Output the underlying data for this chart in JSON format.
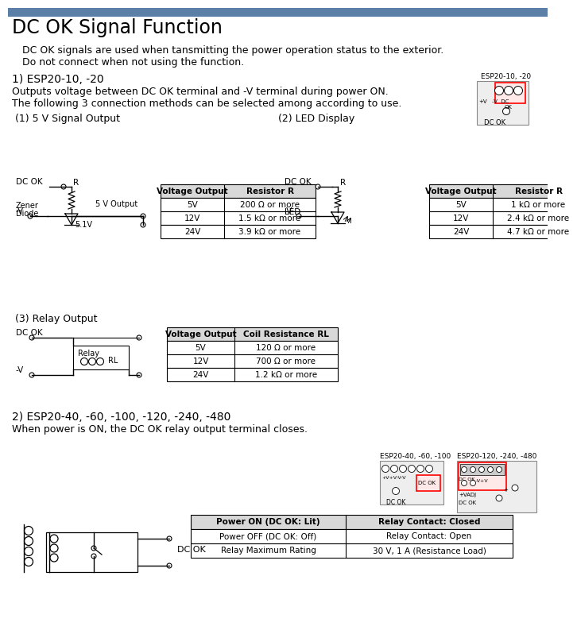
{
  "title": "DC OK Signal Function",
  "title_bar_color": "#5b7fa6",
  "bg_color": "#ffffff",
  "intro_line1": "   DC OK signals are used when tansmitting the power operation status to the exterior.",
  "intro_line2": "   Do not connect when not using the function.",
  "section1_title": "1) ESP20-10, -20",
  "section1_line1": "Outputs voltage between DC OK terminal and -V terminal during power ON.",
  "section1_line2": "The following 3 connection methods can be selected among according to use.",
  "sub1_title": " (1) 5 V Signal Output",
  "sub2_title": "(2) LED Display",
  "sub3_title": " (3) Relay Output",
  "table1_header": [
    "Voltage Output",
    "Resistor R"
  ],
  "table1_rows": [
    [
      "5V",
      "200 Ω or more"
    ],
    [
      "12V",
      "1.5 kΩ or more"
    ],
    [
      "24V",
      "3.9 kΩ or more"
    ]
  ],
  "table2_header": [
    "Voltage Output",
    "Resistor R"
  ],
  "table2_rows": [
    [
      "5V",
      "1 kΩ or more"
    ],
    [
      "12V",
      "2.4 kΩ or more"
    ],
    [
      "24V",
      "4.7 kΩ or more"
    ]
  ],
  "table3_header": [
    "Voltage Output",
    "Coil Resistance RL"
  ],
  "table3_rows": [
    [
      "5V",
      "120 Ω or more"
    ],
    [
      "12V",
      "700 Ω or more"
    ],
    [
      "24V",
      "1.2 kΩ or more"
    ]
  ],
  "section2_title": "2) ESP20-40, -60, -100, -120, -240, -480",
  "section2_line": "When power is ON, the DC OK relay output terminal closes.",
  "table4_header": [
    "Power ON (DC OK: Lit)",
    "Relay Contact: Closed"
  ],
  "table4_rows": [
    [
      "Power OFF (DC OK: Off)",
      "Relay Contact: Open"
    ],
    [
      "Relay Maximum Rating",
      "30 V, 1 A (Resistance Load)"
    ]
  ],
  "esp_label1": "ESP20-10, -20",
  "esp_label2": "ESP20-40, -60, -100",
  "esp_label3": "ESP20-120, -240, -480",
  "dc_ok_label": "DC OK"
}
